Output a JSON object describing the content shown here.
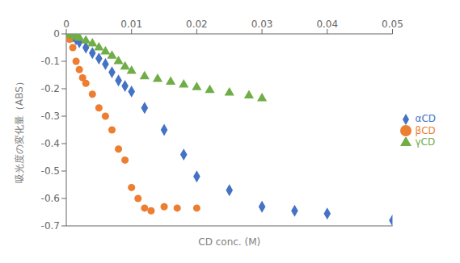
{
  "chart_data": {
    "type": "scatter",
    "xlabel": "CD conc. (M)",
    "ylabel": "吸光度の変化量（ABS）",
    "xlim": [
      0,
      0.05
    ],
    "ylim": [
      -0.7,
      0
    ],
    "xticks": [
      0,
      0.01,
      0.02,
      0.03,
      0.04,
      0.05
    ],
    "yticks": [
      0,
      -0.1,
      -0.2,
      -0.3,
      -0.4,
      -0.5,
      -0.6,
      -0.7
    ],
    "grid": false,
    "legend": "right",
    "series": [
      {
        "name": "αCD",
        "color": "#4472C4",
        "marker": "diamond",
        "x": [
          0.0005,
          0.001,
          0.0015,
          0.002,
          0.003,
          0.004,
          0.005,
          0.006,
          0.007,
          0.008,
          0.009,
          0.01,
          0.012,
          0.015,
          0.018,
          0.02,
          0.025,
          0.03,
          0.035,
          0.04,
          0.05
        ],
        "values": [
          -0.005,
          -0.01,
          -0.02,
          -0.03,
          -0.05,
          -0.07,
          -0.09,
          -0.11,
          -0.14,
          -0.17,
          -0.19,
          -0.21,
          -0.27,
          -0.35,
          -0.44,
          -0.52,
          -0.57,
          -0.63,
          -0.645,
          -0.655,
          -0.68
        ]
      },
      {
        "name": "βCD",
        "color": "#ED7D31",
        "marker": "circle",
        "x": [
          0.0005,
          0.001,
          0.0015,
          0.002,
          0.0025,
          0.003,
          0.004,
          0.005,
          0.006,
          0.007,
          0.008,
          0.009,
          0.01,
          0.011,
          0.012,
          0.013,
          0.015,
          0.017,
          0.02
        ],
        "values": [
          -0.02,
          -0.05,
          -0.1,
          -0.13,
          -0.16,
          -0.18,
          -0.22,
          -0.27,
          -0.3,
          -0.35,
          -0.42,
          -0.46,
          -0.56,
          -0.6,
          -0.635,
          -0.645,
          -0.63,
          -0.635,
          -0.635
        ]
      },
      {
        "name": "γCD",
        "color": "#70AD47",
        "marker": "triangle",
        "x": [
          0.0005,
          0.001,
          0.0015,
          0.002,
          0.003,
          0.004,
          0.005,
          0.006,
          0.007,
          0.008,
          0.009,
          0.01,
          0.012,
          0.014,
          0.016,
          0.018,
          0.02,
          0.022,
          0.025,
          0.028,
          0.03
        ],
        "values": [
          -0.002,
          -0.005,
          -0.01,
          -0.015,
          -0.025,
          -0.035,
          -0.05,
          -0.065,
          -0.08,
          -0.1,
          -0.12,
          -0.135,
          -0.155,
          -0.165,
          -0.175,
          -0.185,
          -0.195,
          -0.205,
          -0.215,
          -0.225,
          -0.235
        ]
      }
    ]
  }
}
